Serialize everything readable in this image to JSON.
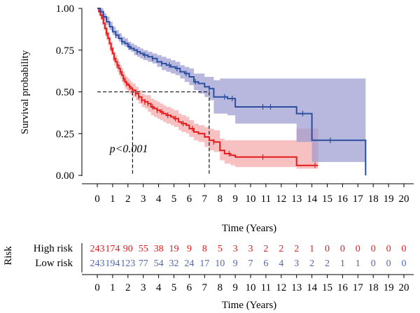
{
  "chart_data": [
    {
      "type": "line",
      "subtype": "kaplan-meier",
      "title": "",
      "xlabel": "Time (Years)",
      "ylabel": "Survival probability",
      "xlim": [
        0,
        20
      ],
      "ylim": [
        0,
        1
      ],
      "x_ticks": [
        "0",
        "1",
        "2",
        "3",
        "4",
        "5",
        "6",
        "7",
        "8",
        "9",
        "10",
        "11",
        "12",
        "13",
        "14",
        "15",
        "16",
        "17",
        "18",
        "19",
        "20"
      ],
      "y_ticks": [
        "0.00",
        "0.25",
        "0.50",
        "0.75",
        "1.00"
      ],
      "annotation": "p<0.001",
      "median_survival": {
        "high_risk": 2.3,
        "low_risk": 7.3
      },
      "series": [
        {
          "name": "High risk",
          "color": "#e41a1c",
          "ci_color": "#f4a6a6",
          "x": [
            0,
            0.1,
            0.2,
            0.3,
            0.4,
            0.5,
            0.6,
            0.7,
            0.8,
            0.9,
            1.0,
            1.1,
            1.2,
            1.3,
            1.4,
            1.5,
            1.6,
            1.7,
            1.8,
            1.9,
            2.0,
            2.1,
            2.2,
            2.3,
            2.5,
            2.7,
            2.9,
            3.1,
            3.3,
            3.5,
            3.7,
            3.9,
            4.1,
            4.3,
            4.5,
            4.8,
            5.0,
            5.3,
            5.5,
            5.8,
            6.0,
            6.3,
            6.6,
            7.0,
            7.3,
            7.4,
            7.6,
            8.0,
            8.3,
            8.7,
            9.0,
            10.0,
            11.0,
            12.0,
            13.0,
            14.4
          ],
          "y": [
            1.0,
            0.98,
            0.96,
            0.94,
            0.91,
            0.88,
            0.85,
            0.82,
            0.79,
            0.76,
            0.73,
            0.7,
            0.68,
            0.66,
            0.64,
            0.62,
            0.6,
            0.58,
            0.56,
            0.55,
            0.54,
            0.53,
            0.52,
            0.51,
            0.49,
            0.47,
            0.45,
            0.44,
            0.43,
            0.41,
            0.4,
            0.39,
            0.38,
            0.37,
            0.36,
            0.35,
            0.34,
            0.32,
            0.31,
            0.3,
            0.28,
            0.26,
            0.25,
            0.23,
            0.21,
            0.21,
            0.2,
            0.15,
            0.13,
            0.12,
            0.11,
            0.11,
            0.11,
            0.11,
            0.06,
            0.06
          ],
          "ci_lower": [
            1.0,
            0.96,
            0.93,
            0.9,
            0.87,
            0.84,
            0.81,
            0.78,
            0.75,
            0.72,
            0.69,
            0.66,
            0.64,
            0.62,
            0.6,
            0.58,
            0.56,
            0.54,
            0.52,
            0.51,
            0.5,
            0.49,
            0.48,
            0.47,
            0.45,
            0.43,
            0.41,
            0.4,
            0.38,
            0.36,
            0.35,
            0.34,
            0.33,
            0.32,
            0.31,
            0.3,
            0.29,
            0.27,
            0.26,
            0.25,
            0.23,
            0.21,
            0.2,
            0.17,
            0.15,
            0.15,
            0.14,
            0.09,
            0.07,
            0.06,
            0.05,
            0.05,
            0.05,
            0.05,
            0.04,
            0.04
          ],
          "ci_upper": [
            1.0,
            1.0,
            0.99,
            0.98,
            0.95,
            0.92,
            0.89,
            0.86,
            0.83,
            0.8,
            0.77,
            0.74,
            0.72,
            0.7,
            0.68,
            0.66,
            0.64,
            0.62,
            0.6,
            0.59,
            0.58,
            0.57,
            0.56,
            0.55,
            0.53,
            0.51,
            0.49,
            0.48,
            0.48,
            0.46,
            0.45,
            0.44,
            0.43,
            0.42,
            0.41,
            0.4,
            0.39,
            0.37,
            0.36,
            0.35,
            0.33,
            0.31,
            0.3,
            0.29,
            0.28,
            0.28,
            0.27,
            0.22,
            0.21,
            0.21,
            0.21,
            0.21,
            0.21,
            0.21,
            0.28,
            0.28
          ],
          "censor_x": [
            0.6,
            0.9,
            1.1,
            1.3,
            1.5,
            1.7,
            1.9,
            2.1,
            2.3,
            2.5,
            2.7,
            2.9,
            3.1,
            3.3,
            3.6,
            3.9,
            4.2,
            4.6,
            5.1,
            5.6,
            6.2,
            7.6,
            8.6,
            10.8,
            14.2
          ]
        },
        {
          "name": "Low risk",
          "color": "#2b4ea0",
          "ci_color": "#9a9ad0",
          "x": [
            0,
            0.2,
            0.4,
            0.6,
            0.8,
            1.0,
            1.2,
            1.4,
            1.6,
            1.8,
            2.0,
            2.2,
            2.4,
            2.6,
            2.8,
            3.0,
            3.3,
            3.6,
            3.9,
            4.2,
            4.5,
            4.8,
            5.1,
            5.4,
            5.7,
            6.0,
            6.3,
            6.6,
            7.0,
            7.3,
            7.6,
            8.0,
            8.5,
            9.0,
            10.0,
            11.0,
            12.0,
            13.0,
            14.0,
            15.0,
            16.0,
            17.0,
            17.5
          ],
          "y": [
            1.0,
            0.98,
            0.95,
            0.92,
            0.89,
            0.86,
            0.84,
            0.82,
            0.8,
            0.79,
            0.77,
            0.76,
            0.75,
            0.74,
            0.73,
            0.72,
            0.71,
            0.7,
            0.68,
            0.67,
            0.66,
            0.65,
            0.64,
            0.62,
            0.61,
            0.59,
            0.56,
            0.55,
            0.53,
            0.52,
            0.47,
            0.47,
            0.46,
            0.41,
            0.41,
            0.41,
            0.41,
            0.37,
            0.21,
            0.21,
            0.21,
            0.21,
            0.0
          ],
          "ci_lower": [
            1.0,
            0.96,
            0.93,
            0.9,
            0.87,
            0.84,
            0.82,
            0.8,
            0.78,
            0.77,
            0.75,
            0.74,
            0.72,
            0.71,
            0.7,
            0.69,
            0.68,
            0.67,
            0.65,
            0.63,
            0.62,
            0.61,
            0.6,
            0.58,
            0.56,
            0.54,
            0.51,
            0.49,
            0.47,
            0.45,
            0.37,
            0.37,
            0.36,
            0.31,
            0.31,
            0.31,
            0.31,
            0.2,
            0.08,
            0.08,
            0.08,
            0.08,
            0.08
          ],
          "ci_upper": [
            1.0,
            1.0,
            0.97,
            0.95,
            0.92,
            0.89,
            0.87,
            0.85,
            0.83,
            0.82,
            0.8,
            0.79,
            0.78,
            0.77,
            0.76,
            0.75,
            0.74,
            0.73,
            0.72,
            0.71,
            0.7,
            0.69,
            0.68,
            0.66,
            0.65,
            0.64,
            0.61,
            0.61,
            0.59,
            0.59,
            0.57,
            0.58,
            0.58,
            0.58,
            0.58,
            0.58,
            0.58,
            0.58,
            0.58,
            0.58,
            0.58,
            0.58,
            0.58
          ],
          "censor_x": [
            1.2,
            1.6,
            2.1,
            2.6,
            3.1,
            3.6,
            4.2,
            4.7,
            5.2,
            5.8,
            6.4,
            7.3,
            8.3,
            8.8,
            10.8,
            11.3,
            13.4,
            15.2
          ]
        }
      ]
    },
    {
      "type": "table",
      "title": "Risk",
      "xlabel": "Time (Years)",
      "x_ticks": [
        "0",
        "1",
        "2",
        "3",
        "4",
        "5",
        "6",
        "7",
        "8",
        "9",
        "10",
        "11",
        "12",
        "13",
        "14",
        "15",
        "16",
        "17",
        "18",
        "19",
        "20"
      ],
      "rows": [
        {
          "label": "High risk",
          "color": "#e41a1c",
          "values": [
            "243",
            "174",
            "90",
            "55",
            "38",
            "19",
            "9",
            "8",
            "5",
            "3",
            "3",
            "2",
            "2",
            "2",
            "1",
            "0",
            "0",
            "0",
            "0",
            "0",
            "0"
          ]
        },
        {
          "label": "Low risk",
          "color": "#4f68b0",
          "values": [
            "243",
            "194",
            "123",
            "77",
            "54",
            "32",
            "24",
            "17",
            "10",
            "9",
            "7",
            "6",
            "4",
            "3",
            "2",
            "2",
            "1",
            "1",
            "0",
            "0",
            "0"
          ]
        }
      ]
    }
  ]
}
